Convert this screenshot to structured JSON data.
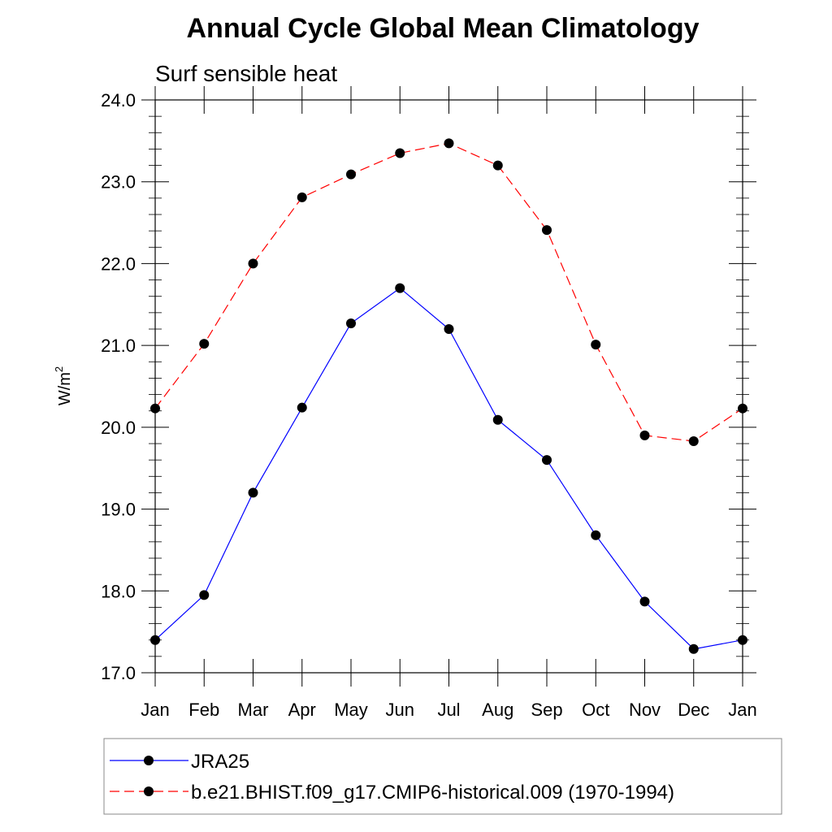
{
  "chart_data": {
    "type": "line",
    "title": "Annual Cycle Global Mean Climatology",
    "subtitle": "Surf sensible heat",
    "xlabel": "",
    "ylabel": "W/m",
    "ylabel_superscript": "2",
    "categories": [
      "Jan",
      "Feb",
      "Mar",
      "Apr",
      "May",
      "Jun",
      "Jul",
      "Aug",
      "Sep",
      "Oct",
      "Nov",
      "Dec",
      "Jan"
    ],
    "ylim": [
      17.0,
      24.0
    ],
    "yticks": [
      "17.0",
      "18.0",
      "19.0",
      "20.0",
      "21.0",
      "22.0",
      "23.0",
      "24.0"
    ],
    "grid": false,
    "legend_position": "bottom",
    "series": [
      {
        "name": "JRA25",
        "color": "#0000ff",
        "dash": "solid",
        "marker": "filled-circle",
        "values": [
          17.4,
          17.95,
          19.2,
          20.24,
          21.27,
          21.7,
          21.2,
          20.09,
          19.6,
          18.68,
          17.87,
          17.29,
          17.4
        ]
      },
      {
        "name": "b.e21.BHIST.f09_g17.CMIP6-historical.009 (1970-1994)",
        "color": "#ff0000",
        "dash": "dashed",
        "marker": "filled-circle",
        "values": [
          20.23,
          21.02,
          22.0,
          22.81,
          23.09,
          23.35,
          23.47,
          23.2,
          22.41,
          21.01,
          19.9,
          19.83,
          20.23
        ]
      }
    ]
  }
}
